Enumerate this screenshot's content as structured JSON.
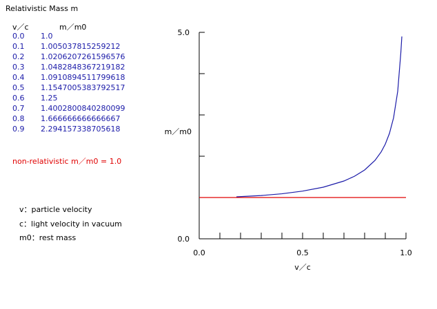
{
  "page": {
    "title": "Relativistic Mass   m",
    "table_header": {
      "v": "v／c",
      "m": "m／m0"
    },
    "rows": [
      {
        "v": "0.0",
        "m": "1.0"
      },
      {
        "v": "0.1",
        "m": "1.005037815259212"
      },
      {
        "v": "0.2",
        "m": "1.0206207261596576"
      },
      {
        "v": "0.3",
        "m": "1.0482848367219182"
      },
      {
        "v": "0.4",
        "m": "1.0910894511799618"
      },
      {
        "v": "0.5",
        "m": "1.1547005383792517"
      },
      {
        "v": "0.6",
        "m": "1.25"
      },
      {
        "v": "0.7",
        "m": "1.4002800840280099"
      },
      {
        "v": "0.8",
        "m": "1.666666666666667"
      },
      {
        "v": "0.9",
        "m": "2.294157338705618"
      }
    ],
    "non_relativistic_label": "non-relativistic  m／m0 = 1.0",
    "legend": [
      "v：particle velocity",
      "c：light velocity in vacuum",
      "m0：rest mass"
    ],
    "colors": {
      "relativistic": "#1a1aa8",
      "nonrelativistic": "#e00000",
      "axis": "#000000"
    }
  },
  "chart_data": {
    "type": "line",
    "xlabel": "v／c",
    "ylabel": "m／m0",
    "xlim": [
      0.0,
      1.0
    ],
    "ylim": [
      0.0,
      5.0
    ],
    "x_tick_labels": [
      "0.0",
      "0.5",
      "1.0"
    ],
    "y_tick_labels": [
      "0.0",
      "5.0"
    ],
    "grid": false,
    "series": [
      {
        "x": [
          0.18,
          0.3,
          0.4,
          0.5,
          0.6,
          0.7,
          0.75,
          0.8,
          0.85,
          0.88,
          0.9,
          0.92,
          0.94,
          0.96,
          0.975,
          0.98
        ],
        "y": [
          1.017,
          1.048,
          1.091,
          1.155,
          1.25,
          1.4,
          1.512,
          1.667,
          1.898,
          2.105,
          2.294,
          2.552,
          2.931,
          3.571,
          4.5,
          4.9
        ]
      },
      {
        "x": [
          0.0,
          1.0
        ],
        "y": [
          1.0,
          1.0
        ]
      }
    ]
  }
}
